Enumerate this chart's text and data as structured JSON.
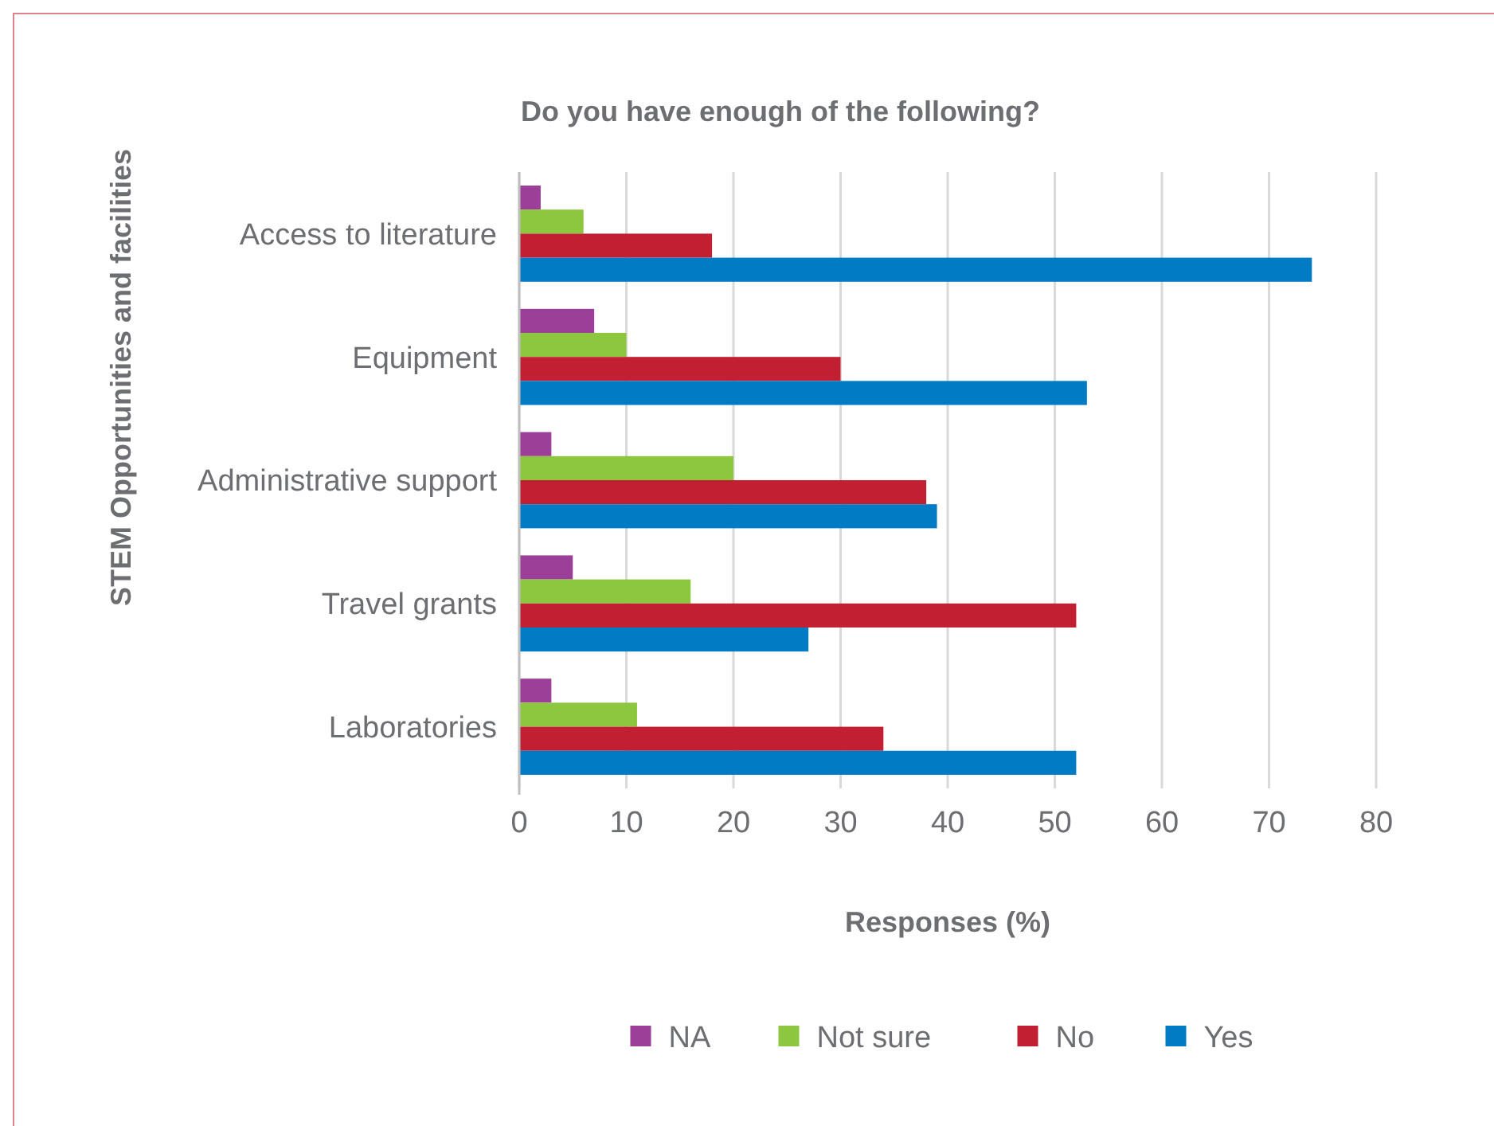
{
  "chart_data": {
    "type": "bar",
    "orientation": "horizontal",
    "title": "Do you have enough of the following?",
    "xlabel": "Responses (%)",
    "ylabel": "STEM Opportunities and facilities",
    "categories": [
      "Access to literature",
      "Equipment",
      "Administrative support",
      "Travel grants",
      "Laboratories"
    ],
    "series": [
      {
        "name": "NA",
        "color": "#9b3f98",
        "values": [
          2,
          7,
          3,
          5,
          3
        ]
      },
      {
        "name": "Not sure",
        "color": "#8dc63f",
        "values": [
          6,
          10,
          20,
          16,
          11
        ]
      },
      {
        "name": "No",
        "color": "#c22032",
        "values": [
          18,
          30,
          38,
          52,
          34
        ]
      },
      {
        "name": "Yes",
        "color": "#007bc4",
        "values": [
          74,
          53,
          39,
          27,
          52
        ]
      }
    ],
    "xlim": [
      0,
      80
    ],
    "xticks": [
      0,
      10,
      20,
      30,
      40,
      50,
      60,
      70,
      80
    ],
    "grid": "x",
    "legend": "bottom"
  }
}
